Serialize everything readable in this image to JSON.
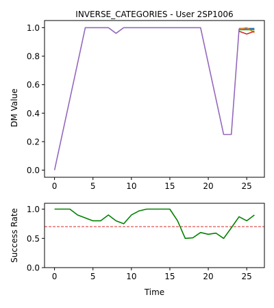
{
  "chart_data": [
    {
      "type": "line",
      "title": "INVERSE_CATEGORIES - User 2SP1006",
      "xlabel": "",
      "ylabel": "DM Value",
      "xlim": [
        -1.3,
        27.3
      ],
      "ylim": [
        -0.05,
        1.05
      ],
      "xticks": [
        0,
        5,
        10,
        15,
        20,
        25
      ],
      "yticks": [
        0.0,
        0.2,
        0.4,
        0.6,
        0.8,
        1.0
      ],
      "grid": false,
      "series": [
        {
          "color": "#9467bd",
          "x": [
            0,
            4,
            7,
            8,
            9,
            19,
            22,
            23,
            24,
            25,
            26
          ],
          "y": [
            0.0,
            1.0,
            1.0,
            0.96,
            1.0,
            1.0,
            0.25,
            0.25,
            0.99,
            0.99,
            0.99
          ]
        },
        {
          "color": "#1f77b4",
          "x": [
            24,
            25,
            26
          ],
          "y": [
            0.995,
            0.995,
            0.995
          ]
        },
        {
          "color": "#ff7f0e",
          "x": [
            24,
            25,
            26
          ],
          "y": [
            0.99,
            1.0,
            0.965
          ]
        },
        {
          "color": "#2ca02c",
          "x": [
            24,
            25,
            26
          ],
          "y": [
            0.985,
            0.985,
            0.985
          ]
        },
        {
          "color": "#d62728",
          "x": [
            24,
            25,
            26
          ],
          "y": [
            0.975,
            0.955,
            0.975
          ]
        }
      ]
    },
    {
      "type": "line",
      "title": "",
      "xlabel": "Time",
      "ylabel": "Success Rate",
      "xlim": [
        -1.3,
        27.3
      ],
      "ylim": [
        0.0,
        1.1
      ],
      "xticks": [
        0,
        5,
        10,
        15,
        20,
        25
      ],
      "yticks": [
        0.0,
        0.5,
        1.0
      ],
      "grid": false,
      "threshold": {
        "value": 0.7,
        "color": "#d62728",
        "style": "dashed"
      },
      "series": [
        {
          "color": "#008000",
          "x": [
            0,
            1,
            2,
            3,
            4,
            5,
            6,
            7,
            8,
            9,
            10,
            11,
            12,
            13,
            14,
            15,
            16,
            17,
            18,
            19,
            20,
            21,
            22,
            23,
            24,
            25,
            26
          ],
          "y": [
            1.0,
            1.0,
            1.0,
            0.9,
            0.85,
            0.8,
            0.8,
            0.9,
            0.8,
            0.75,
            0.9,
            0.97,
            1.0,
            1.0,
            1.0,
            1.0,
            0.8,
            0.5,
            0.51,
            0.6,
            0.57,
            0.59,
            0.5,
            0.68,
            0.87,
            0.8,
            0.9
          ]
        }
      ]
    }
  ]
}
